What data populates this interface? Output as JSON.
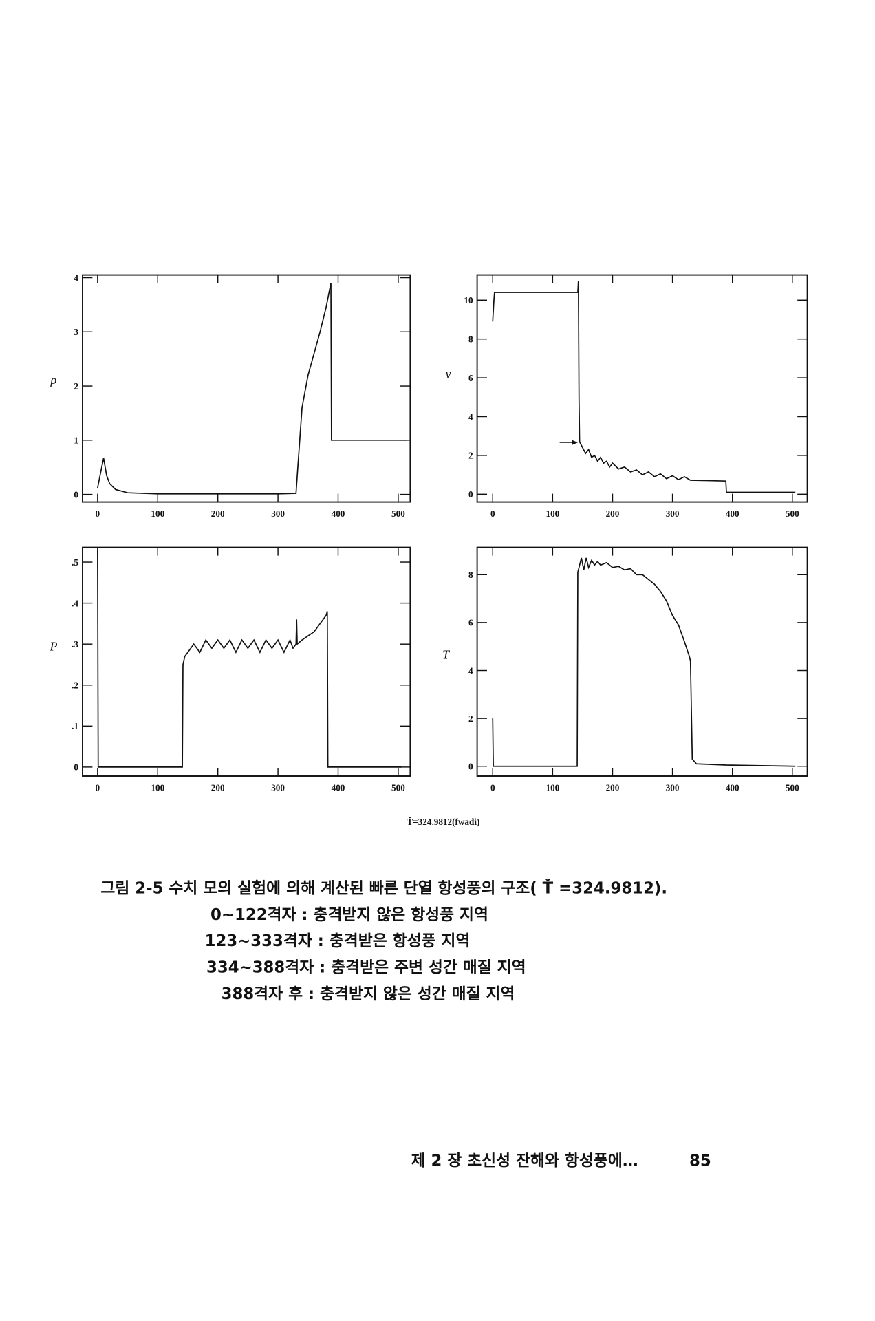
{
  "chart_data": [
    {
      "type": "line",
      "ylabel": "ρ",
      "color": "#111",
      "x": [
        0,
        5,
        10,
        15,
        20,
        30,
        50,
        100,
        200,
        300,
        330,
        333,
        340,
        350,
        360,
        370,
        380,
        388,
        389,
        400,
        500,
        515
      ],
      "values": [
        0.12,
        0.4,
        0.67,
        0.35,
        0.2,
        0.09,
        0.03,
        0.01,
        0.01,
        0.01,
        0.02,
        0.5,
        1.6,
        2.2,
        2.6,
        3.0,
        3.45,
        3.9,
        1.0,
        1.0,
        1.0,
        1.0
      ],
      "xlim": [
        -25,
        520
      ],
      "ylim": [
        -0.14,
        4.05
      ],
      "xticks": [
        0,
        100,
        200,
        300,
        400,
        500
      ],
      "yticks": [
        0,
        1,
        2,
        3,
        4
      ]
    },
    {
      "type": "line",
      "ylabel": "v",
      "color": "#111",
      "x": [
        0,
        2,
        3,
        60,
        120,
        142,
        143,
        144,
        145,
        150,
        155,
        160,
        165,
        170,
        175,
        180,
        185,
        190,
        195,
        200,
        210,
        220,
        230,
        240,
        250,
        260,
        270,
        280,
        290,
        300,
        310,
        320,
        330,
        360,
        389,
        390,
        400,
        450,
        505
      ],
      "values": [
        8.9,
        10.0,
        10.4,
        10.4,
        10.4,
        10.4,
        11.0,
        5.0,
        2.7,
        2.4,
        2.1,
        2.3,
        1.9,
        2.0,
        1.7,
        1.9,
        1.6,
        1.7,
        1.4,
        1.6,
        1.3,
        1.4,
        1.15,
        1.25,
        1.0,
        1.15,
        0.9,
        1.05,
        0.8,
        0.95,
        0.75,
        0.9,
        0.72,
        0.7,
        0.68,
        0.1,
        0.1,
        0.1,
        0.1
      ],
      "xlim": [
        -26,
        525
      ],
      "ylim": [
        -0.4,
        11.3
      ],
      "xticks": [
        0,
        100,
        200,
        300,
        400,
        500
      ],
      "yticks": [
        0,
        2,
        4,
        6,
        8,
        10
      ]
    },
    {
      "type": "line",
      "ylabel": "P",
      "color": "#111",
      "x": [
        0,
        1,
        100,
        141,
        142,
        145,
        150,
        160,
        170,
        180,
        190,
        200,
        210,
        220,
        230,
        240,
        250,
        260,
        270,
        280,
        290,
        300,
        310,
        320,
        325,
        330,
        331,
        332,
        340,
        360,
        380,
        382,
        383,
        400,
        505
      ],
      "values": [
        0.53,
        0,
        0,
        0,
        0.25,
        0.27,
        0.28,
        0.3,
        0.28,
        0.31,
        0.29,
        0.31,
        0.29,
        0.31,
        0.28,
        0.31,
        0.29,
        0.31,
        0.28,
        0.31,
        0.29,
        0.31,
        0.28,
        0.31,
        0.29,
        0.3,
        0.36,
        0.3,
        0.31,
        0.33,
        0.37,
        0.38,
        0,
        0,
        0
      ],
      "xlim": [
        -25,
        520
      ],
      "ylim": [
        -0.022,
        0.536
      ],
      "xticks": [
        0,
        100,
        200,
        300,
        400,
        500
      ],
      "yticks": [
        0,
        {
          "value": 0.1,
          "label": ".1"
        },
        {
          "value": 0.2,
          "label": ".2"
        },
        {
          "value": 0.3,
          "label": ".3"
        },
        {
          "value": 0.4,
          "label": ".4"
        },
        {
          "value": 0.5,
          "label": ".5"
        }
      ]
    },
    {
      "type": "line",
      "ylabel": "T",
      "color": "#111",
      "x": [
        0,
        1,
        2,
        100,
        141,
        142,
        145,
        148,
        152,
        156,
        160,
        165,
        170,
        175,
        180,
        190,
        200,
        210,
        220,
        230,
        240,
        250,
        260,
        270,
        280,
        290,
        300,
        310,
        320,
        328,
        330,
        333,
        340,
        390,
        505
      ],
      "values": [
        2.0,
        0,
        0,
        0,
        0,
        8.1,
        8.4,
        8.7,
        8.2,
        8.7,
        8.3,
        8.6,
        8.4,
        8.55,
        8.4,
        8.5,
        8.3,
        8.35,
        8.2,
        8.25,
        8.0,
        8.0,
        7.8,
        7.6,
        7.3,
        6.9,
        6.3,
        5.9,
        5.2,
        4.6,
        4.4,
        0.3,
        0.1,
        0.05,
        0
      ],
      "xlim": [
        -26,
        525
      ],
      "ylim": [
        -0.41,
        9.14
      ],
      "xticks": [
        0,
        100,
        200,
        300,
        400,
        500
      ],
      "yticks": [
        0,
        2,
        4,
        6,
        8
      ]
    }
  ],
  "figure_note": "Ť=324.9812(fwadi)",
  "caption": {
    "title": "그림 2-5  수치 모의 실험에 의해 계산된 빠른 단열 항성풍의 구조( Ť =324.9812).",
    "lines": [
      "0~122격자 : 충격받지 않은 항성풍 지역",
      "123~333격자 : 충격받은 항성풍 지역",
      "334~388격자 : 충격받은 주변 성간 매질 지역",
      "388격자 후 : 충격받지 않은 성간 매질 지역"
    ]
  },
  "footer": {
    "running_head": "제 2 장  초신성 잔해와 항성풍에…",
    "page": "85"
  }
}
